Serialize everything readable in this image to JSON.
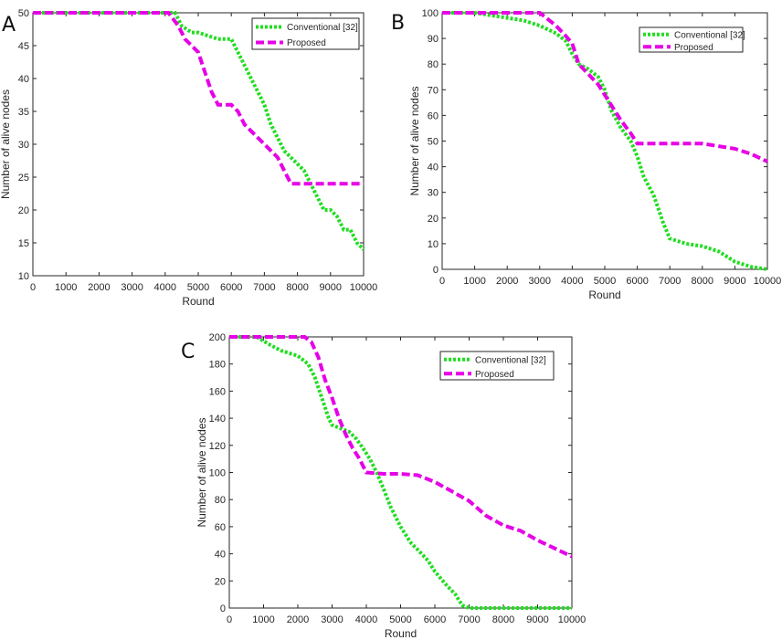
{
  "colors": {
    "conventional": "#22dd22",
    "proposed": "#e600e6"
  },
  "chart_data": [
    {
      "type": "line",
      "panel_label": "A",
      "xlabel": "Round",
      "ylabel": "Number of alive nodes",
      "xlim": [
        0,
        10000
      ],
      "ylim": [
        10,
        50
      ],
      "xticks": [
        0,
        1000,
        2000,
        3000,
        4000,
        5000,
        6000,
        7000,
        8000,
        9000,
        10000
      ],
      "yticks": [
        10,
        15,
        20,
        25,
        30,
        35,
        40,
        45,
        50
      ],
      "legend_position": "top-right",
      "series": [
        {
          "name": "Conventional [32]",
          "style": "dotted",
          "x": [
            0,
            4300,
            4500,
            4800,
            5000,
            5600,
            6000,
            6200,
            6400,
            6600,
            6800,
            7000,
            7200,
            7400,
            7600,
            7800,
            8000,
            8200,
            8400,
            8600,
            8800,
            9000,
            9200,
            9400,
            9600,
            9800,
            10000
          ],
          "y": [
            50,
            50,
            48,
            47,
            47,
            46,
            46,
            44,
            42,
            40,
            38,
            36,
            33,
            31,
            29,
            28,
            27,
            26,
            24,
            22,
            20,
            20,
            19,
            17,
            17,
            15,
            14
          ]
        },
        {
          "name": "Proposed",
          "style": "dashed",
          "x": [
            0,
            4100,
            4400,
            4600,
            4800,
            5000,
            5200,
            5400,
            5600,
            6000,
            6200,
            6400,
            6600,
            6800,
            7000,
            7200,
            7400,
            7600,
            7800,
            8000,
            10000
          ],
          "y": [
            50,
            50,
            48,
            46,
            45,
            44,
            41,
            38,
            36,
            36,
            35,
            33,
            32,
            31,
            30,
            29,
            28,
            26,
            24,
            24,
            24
          ]
        }
      ]
    },
    {
      "type": "line",
      "panel_label": "B",
      "xlabel": "Round",
      "ylabel": "Number of alive nodes",
      "xlim": [
        0,
        10000
      ],
      "ylim": [
        0,
        100
      ],
      "xticks": [
        0,
        1000,
        2000,
        3000,
        4000,
        5000,
        6000,
        7000,
        8000,
        9000,
        10000
      ],
      "yticks": [
        0,
        10,
        20,
        30,
        40,
        50,
        60,
        70,
        80,
        90,
        100
      ],
      "legend_position": "top-right",
      "series": [
        {
          "name": "Conventional [32]",
          "style": "dotted",
          "x": [
            0,
            1000,
            1500,
            2000,
            2500,
            3000,
            3500,
            3800,
            4000,
            4200,
            4500,
            4800,
            5000,
            5200,
            5500,
            5800,
            6000,
            6200,
            6500,
            6800,
            7000,
            7500,
            8000,
            8500,
            9000,
            9500,
            10000
          ],
          "y": [
            100,
            100,
            99,
            98,
            97,
            95,
            92,
            89,
            84,
            80,
            78,
            75,
            70,
            62,
            55,
            50,
            44,
            36,
            29,
            18,
            12,
            10,
            9,
            7,
            3,
            1,
            0
          ]
        },
        {
          "name": "Proposed",
          "style": "dashed",
          "x": [
            0,
            3000,
            3200,
            3500,
            3800,
            4000,
            4200,
            4500,
            4800,
            5000,
            5200,
            5500,
            5800,
            6000,
            6500,
            7000,
            7500,
            8000,
            8500,
            9000,
            9500,
            10000
          ],
          "y": [
            100,
            100,
            98,
            95,
            91,
            88,
            80,
            76,
            72,
            68,
            64,
            58,
            53,
            49,
            49,
            49,
            49,
            49,
            48,
            47,
            45,
            42
          ]
        }
      ]
    },
    {
      "type": "line",
      "panel_label": "C",
      "xlabel": "Round",
      "ylabel": "Number of alive nodes",
      "xlim": [
        0,
        10000
      ],
      "ylim": [
        0,
        200
      ],
      "xticks": [
        0,
        1000,
        2000,
        3000,
        4000,
        5000,
        6000,
        7000,
        8000,
        9000,
        10000
      ],
      "yticks": [
        0,
        20,
        40,
        60,
        80,
        100,
        120,
        140,
        160,
        180,
        200
      ],
      "legend_position": "top-right",
      "series": [
        {
          "name": "Conventional [32]",
          "style": "dotted",
          "x": [
            0,
            800,
            1000,
            1200,
            1500,
            2000,
            2300,
            2500,
            2700,
            2900,
            3000,
            3200,
            3500,
            3700,
            3900,
            4100,
            4300,
            4500,
            4700,
            5000,
            5300,
            5500,
            5800,
            6000,
            6300,
            6600,
            6800,
            7000,
            8000,
            9000,
            10000
          ],
          "y": [
            200,
            200,
            197,
            194,
            190,
            186,
            180,
            170,
            155,
            140,
            135,
            133,
            130,
            125,
            118,
            110,
            100,
            88,
            75,
            60,
            48,
            43,
            35,
            27,
            18,
            10,
            2,
            0,
            0,
            0,
            0
          ]
        },
        {
          "name": "Proposed",
          "style": "dashed",
          "x": [
            0,
            2200,
            2400,
            2600,
            2800,
            3000,
            3200,
            3400,
            3600,
            3800,
            4000,
            4500,
            5000,
            5500,
            6000,
            6500,
            7000,
            7500,
            8000,
            8500,
            9000,
            9500,
            10000
          ],
          "y": [
            200,
            200,
            196,
            185,
            168,
            155,
            140,
            128,
            118,
            110,
            100,
            99,
            99,
            98,
            93,
            86,
            79,
            68,
            61,
            57,
            50,
            44,
            38
          ]
        }
      ]
    }
  ]
}
